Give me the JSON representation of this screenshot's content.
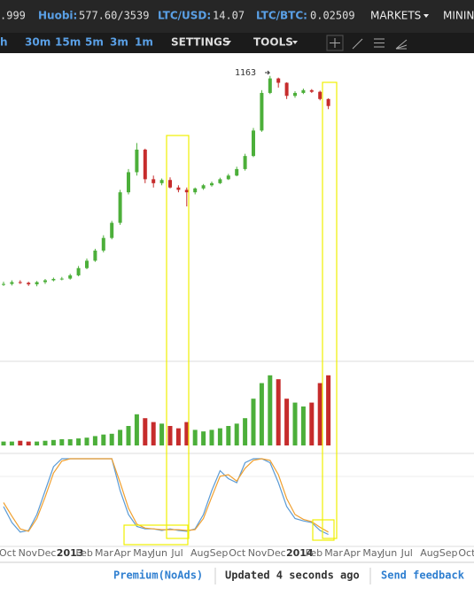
{
  "top_bar": {
    "cut_price": ".999",
    "huobi_label": "Huobi:",
    "huobi_value": "577.60/3539",
    "ltcusd_label": "LTC/USD:",
    "ltcusd_value": "14.07",
    "ltcbtc_label": "LTC/BTC:",
    "ltcbtc_value": "0.02509",
    "markets": "MARKETS",
    "mining": "MININ"
  },
  "toolbar": {
    "intervals": [
      "h",
      "30m",
      "15m",
      "5m",
      "3m",
      "1m"
    ],
    "settings": "SETTINGS",
    "tools": "TOOLS"
  },
  "time_axis": {
    "labels": [
      "Oct",
      "Nov",
      "Dec",
      "2013",
      "Feb",
      "Mar",
      "Apr",
      "May",
      "Jun",
      "Jul",
      "Aug",
      "Sep",
      "Oct",
      "Nov",
      "Dec",
      "2014",
      "Feb",
      "Mar",
      "Apr",
      "May",
      "Jun",
      "Jul",
      "Aug",
      "Sep",
      "Oct"
    ]
  },
  "chart_data": [
    {
      "type": "candlestick",
      "annotation": "1163",
      "log_scale": true,
      "ylim": [
        10,
        1300
      ],
      "up_color": "#4caf3a",
      "down_color": "#c62c2c",
      "open": [
        11.8,
        12,
        12.5,
        12.3,
        11.9,
        12.5,
        13,
        13.4,
        13.5,
        14.5,
        17,
        20,
        25,
        33,
        46,
        90,
        140,
        230,
        120,
        110,
        118,
        100,
        95,
        90,
        98,
        105,
        110,
        120,
        130,
        150,
        200,
        350,
        800,
        1100,
        1000,
        750,
        800,
        850,
        820,
        700
      ],
      "high": [
        12.6,
        13,
        13,
        12.6,
        12.8,
        13.4,
        13.8,
        14,
        15,
        17.8,
        21,
        26,
        35,
        48,
        95,
        150,
        266,
        235,
        130,
        122,
        125,
        105,
        100,
        100,
        108,
        114,
        124,
        135,
        158,
        210,
        370,
        850,
        1163,
        1120,
        1010,
        830,
        880,
        870,
        840,
        710
      ],
      "low": [
        11.5,
        11.6,
        12,
        11.5,
        11.4,
        12,
        12.7,
        13,
        13.2,
        14.2,
        16.6,
        19.5,
        24,
        32,
        44,
        86,
        130,
        110,
        100,
        105,
        98,
        90,
        66,
        86,
        95,
        102,
        108,
        118,
        128,
        145,
        195,
        340,
        780,
        900,
        700,
        720,
        780,
        800,
        680,
        560
      ],
      "close": [
        12,
        12.5,
        12.3,
        11.9,
        12.5,
        13,
        13.4,
        13.5,
        14.5,
        17,
        20,
        25,
        33,
        46,
        90,
        140,
        230,
        120,
        110,
        118,
        100,
        95,
        90,
        98,
        105,
        110,
        120,
        130,
        150,
        200,
        350,
        800,
        1100,
        1000,
        750,
        800,
        850,
        820,
        700,
        600
      ]
    },
    {
      "type": "bar",
      "ylim": [
        0,
        100
      ],
      "values": [
        5,
        5,
        6,
        5,
        5,
        6,
        7,
        8,
        8,
        9,
        10,
        12,
        14,
        15,
        20,
        25,
        40,
        35,
        30,
        28,
        25,
        22,
        30,
        20,
        18,
        20,
        22,
        25,
        28,
        35,
        60,
        80,
        90,
        85,
        60,
        55,
        50,
        55,
        80,
        90
      ]
    },
    {
      "type": "line",
      "ylim": [
        0,
        100
      ],
      "series": [
        {
          "color": "#5b9bd5",
          "values": [
            40,
            20,
            8,
            10,
            30,
            60,
            90,
            100,
            100,
            100,
            100,
            100,
            100,
            100,
            60,
            30,
            15,
            12,
            12,
            10,
            12,
            10,
            9,
            12,
            30,
            60,
            85,
            75,
            70,
            95,
            100,
            100,
            95,
            70,
            40,
            25,
            22,
            20,
            10,
            5
          ]
        },
        {
          "color": "#f0a030",
          "values": [
            45,
            28,
            12,
            9,
            25,
            52,
            82,
            97,
            100,
            100,
            100,
            100,
            100,
            100,
            70,
            38,
            18,
            13,
            12,
            11,
            11,
            11,
            10,
            11,
            25,
            52,
            78,
            80,
            72,
            88,
            98,
            100,
            98,
            80,
            50,
            30,
            24,
            21,
            14,
            8
          ]
        }
      ]
    }
  ],
  "footer": {
    "premium": "Premium(NoAds)",
    "updated": "Updated 4 seconds ago",
    "feedback": "Send feedback"
  }
}
